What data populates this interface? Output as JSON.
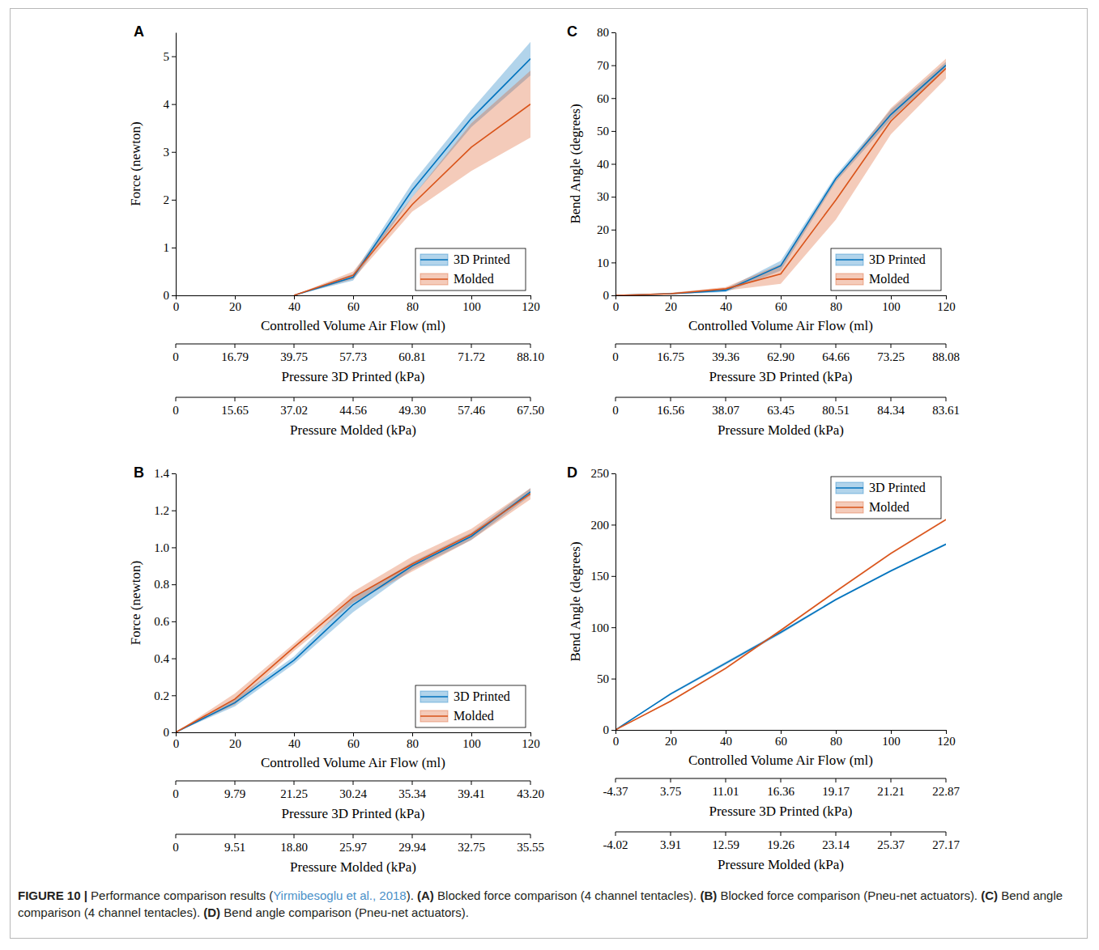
{
  "chart_data": [
    {
      "type": "line",
      "panel": "A",
      "x_label": "Controlled Volume Air Flow (ml)",
      "y_label": "Force (newton)",
      "x": [
        0,
        20,
        40,
        60,
        80,
        100,
        120
      ],
      "xlim": [
        0,
        120
      ],
      "xticks": [
        0,
        20,
        40,
        60,
        80,
        100,
        120
      ],
      "ylim": [
        0,
        5.5
      ],
      "yticks": [
        0,
        1,
        2,
        3,
        4,
        5
      ],
      "legend": "bottom-right",
      "series": [
        {
          "name": "3D Printed",
          "color": "#0072bd",
          "values": [
            null,
            null,
            0,
            0.38,
            2.2,
            3.7,
            4.95
          ],
          "errors": [
            null,
            null,
            0,
            0.07,
            0.15,
            0.18,
            0.35
          ]
        },
        {
          "name": "Molded",
          "color": "#d95319",
          "values": [
            null,
            null,
            0,
            0.42,
            1.9,
            3.1,
            4.0
          ],
          "errors": [
            null,
            null,
            0,
            0.08,
            0.15,
            0.5,
            0.7
          ]
        }
      ],
      "pressure_axes": [
        {
          "label": "Pressure 3D Printed (kPa)",
          "ticks": [
            0,
            16.79,
            39.75,
            57.73,
            60.81,
            71.72,
            {
              "value": 88.1,
              "label": "88.10"
            }
          ]
        },
        {
          "label": "Pressure Molded (kPa)",
          "ticks": [
            0,
            15.65,
            37.02,
            44.56,
            {
              "value": 49.3,
              "label": "49.30"
            },
            57.46,
            {
              "value": 67.5,
              "label": "67.50"
            }
          ]
        }
      ]
    },
    {
      "type": "line",
      "panel": "B",
      "x_label": "Controlled Volume Air Flow (ml)",
      "y_label": "Force (newton)",
      "x": [
        0,
        20,
        40,
        60,
        80,
        100,
        120
      ],
      "xlim": [
        0,
        120
      ],
      "xticks": [
        0,
        20,
        40,
        60,
        80,
        100,
        120
      ],
      "ylim": [
        0,
        1.4
      ],
      "yticks": [
        0,
        0.2,
        0.4,
        0.6,
        0.8,
        {
          "value": 1,
          "label": "1.0"
        },
        1.2,
        1.4
      ],
      "legend": "bottom-right",
      "series": [
        {
          "name": "3D Printed",
          "color": "#0072bd",
          "values": [
            0,
            0.16,
            0.39,
            0.69,
            0.9,
            1.06,
            1.3
          ],
          "errors": [
            0,
            0.02,
            0.02,
            0.04,
            0.02,
            0.02,
            0.02
          ]
        },
        {
          "name": "Molded",
          "color": "#d95319",
          "values": [
            0,
            0.18,
            0.46,
            0.73,
            0.91,
            1.07,
            1.29
          ],
          "errors": [
            0,
            0.03,
            0.02,
            0.03,
            0.04,
            0.03,
            0.03
          ]
        }
      ],
      "pressure_axes": [
        {
          "label": "Pressure 3D Printed (kPa)",
          "ticks": [
            0,
            9.79,
            21.25,
            30.24,
            35.34,
            39.41,
            {
              "value": 43.2,
              "label": "43.20"
            }
          ]
        },
        {
          "label": "Pressure Molded (kPa)",
          "ticks": [
            0,
            9.51,
            {
              "value": 18.8,
              "label": "18.80"
            },
            25.97,
            29.94,
            32.75,
            35.55
          ]
        }
      ]
    },
    {
      "type": "line",
      "panel": "C",
      "x_label": "Controlled Volume Air Flow (ml)",
      "y_label": "Bend Angle (degrees)",
      "x": [
        0,
        20,
        40,
        60,
        80,
        100,
        120
      ],
      "xlim": [
        0,
        120
      ],
      "xticks": [
        0,
        20,
        40,
        60,
        80,
        100,
        120
      ],
      "ylim": [
        0,
        80
      ],
      "yticks": [
        0,
        10,
        20,
        30,
        40,
        50,
        60,
        70,
        80
      ],
      "legend": "bottom-right",
      "series": [
        {
          "name": "3D Printed",
          "color": "#0072bd",
          "values": [
            0,
            0.5,
            1.5,
            9,
            35.5,
            55,
            70
          ],
          "errors": [
            0,
            0.2,
            0.5,
            1.5,
            1,
            1.5,
            1
          ]
        },
        {
          "name": "Molded",
          "color": "#d95319",
          "values": [
            0,
            0.5,
            2,
            6.5,
            29,
            53,
            69
          ],
          "errors": [
            0,
            0.3,
            0.5,
            3,
            6,
            4,
            3
          ]
        }
      ],
      "pressure_axes": [
        {
          "label": "Pressure 3D Printed (kPa)",
          "ticks": [
            0,
            16.75,
            39.36,
            {
              "value": 62.9,
              "label": "62.90"
            },
            64.66,
            73.25,
            88.08
          ]
        },
        {
          "label": "Pressure Molded (kPa)",
          "ticks": [
            0,
            16.56,
            38.07,
            63.45,
            80.51,
            84.34,
            83.61
          ]
        }
      ]
    },
    {
      "type": "line",
      "panel": "D",
      "x_label": "Controlled Volume Air Flow (ml)",
      "y_label": "Bend Angle (degrees)",
      "x": [
        0,
        20,
        40,
        60,
        80,
        100,
        120
      ],
      "xlim": [
        0,
        120
      ],
      "xticks": [
        0,
        20,
        40,
        60,
        80,
        100,
        120
      ],
      "ylim": [
        0,
        250
      ],
      "yticks": [
        0,
        50,
        100,
        150,
        200,
        250
      ],
      "legend": "top-right",
      "series": [
        {
          "name": "3D Printed",
          "color": "#0072bd",
          "values": [
            0,
            35,
            65,
            95,
            127,
            155,
            181
          ],
          "errors": [
            0,
            1,
            1.5,
            1.5,
            1,
            1,
            1
          ]
        },
        {
          "name": "Molded",
          "color": "#d95319",
          "values": [
            0,
            28,
            60,
            97,
            135,
            172,
            205
          ],
          "errors": [
            0,
            0.8,
            1,
            1,
            1,
            1,
            1
          ]
        }
      ],
      "pressure_axes": [
        {
          "label": "Pressure 3D Printed (kPa)",
          "ticks": [
            -4.37,
            3.75,
            11.01,
            16.36,
            19.17,
            21.21,
            22.87
          ]
        },
        {
          "label": "Pressure Molded (kPa)",
          "ticks": [
            -4.02,
            3.91,
            12.59,
            19.26,
            23.14,
            25.37,
            27.17
          ]
        }
      ]
    }
  ],
  "caption": {
    "figure": "FIGURE 10 |",
    "text": "Performance comparison results (",
    "citation": "Yirmibesoglu et al., 2018",
    "text_end": ").",
    "parts": [
      {
        "letter": "(A)",
        "text": "Blocked force comparison (4 channel tentacles)."
      },
      {
        "letter": "(B)",
        "text": "Blocked force comparison (Pneu-net actuators)."
      },
      {
        "letter": "(C)",
        "text": "Bend angle comparison (4 channel tentacles)."
      },
      {
        "letter": "(D)",
        "text": "Bend angle comparison (Pneu-net actuators)."
      }
    ]
  }
}
